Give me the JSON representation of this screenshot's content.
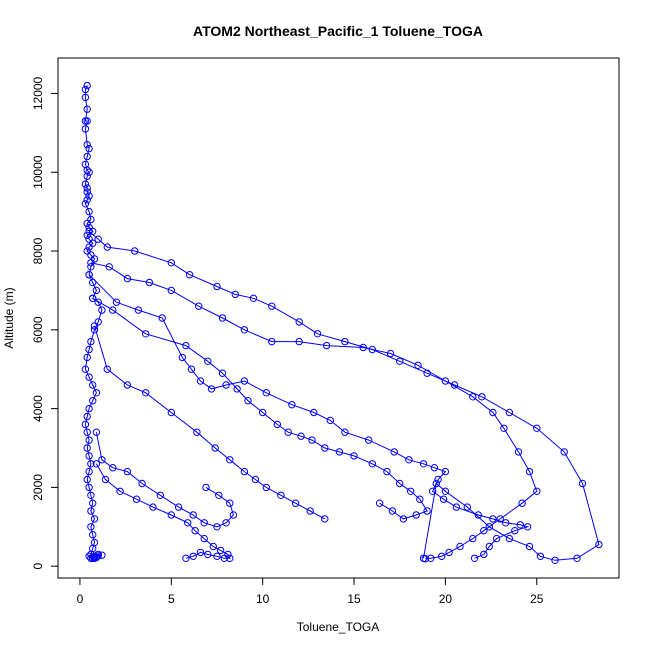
{
  "chart_data": {
    "type": "line",
    "title": "ATOM2 Northeast_Pacific_1 Toluene_TOGA",
    "xlabel": "Toluene_TOGA",
    "ylabel": "Altitude (m)",
    "xlim": [
      -1.2,
      29.5
    ],
    "ylim": [
      -300,
      12900
    ],
    "xticks": [
      0,
      5,
      10,
      15,
      20,
      25
    ],
    "yticks": [
      0,
      2000,
      4000,
      6000,
      8000,
      10000,
      12000
    ],
    "series_color": "#0000ff",
    "marker": "open-circle",
    "series": [
      {
        "x": [
          0.4,
          0.3,
          0.3,
          0.4,
          0.3,
          0.4,
          0.3,
          0.4,
          0.5,
          0.4,
          0.3,
          0.4,
          0.5,
          0.4,
          0.3,
          0.4,
          0.4,
          0.5,
          0.4,
          0.3,
          0.5,
          0.6,
          0.4,
          0.5,
          0.7,
          0.4,
          0.5,
          0.7,
          0.5,
          0.4,
          0.6,
          0.8,
          0.6,
          0.5,
          0.7,
          0.9,
          0.7,
          1.0,
          1.2,
          1.0,
          0.8,
          0.6,
          0.5,
          0.4,
          0.3,
          0.5,
          0.7,
          0.9,
          0.7,
          0.5,
          0.4,
          0.3,
          0.4,
          0.5,
          0.4,
          0.5,
          0.6,
          0.5,
          0.4,
          0.5,
          0.6,
          0.7,
          0.6,
          0.8,
          0.6,
          0.7,
          0.8,
          0.7,
          0.6,
          0.5,
          0.7,
          0.8,
          0.7,
          0.9,
          0.8,
          1.0,
          1.2,
          1.0,
          0.8,
          0.7,
          0.6
        ],
        "y": [
          12200,
          12100,
          11900,
          11600,
          11300,
          11300,
          11100,
          10700,
          10600,
          10400,
          10200,
          10050,
          10000,
          9900,
          9700,
          9600,
          9500,
          9400,
          9300,
          9200,
          9000,
          8800,
          8700,
          8600,
          8500,
          8400,
          8300,
          8200,
          8100,
          8000,
          7900,
          7800,
          7600,
          7400,
          7200,
          7000,
          6800,
          6700,
          6500,
          6200,
          6000,
          5700,
          5500,
          5300,
          5000,
          4800,
          4600,
          4400,
          4200,
          4000,
          3800,
          3600,
          3400,
          3200,
          3000,
          2800,
          2600,
          2400,
          2200,
          2000,
          1800,
          1600,
          1400,
          1200,
          1000,
          800,
          600,
          450,
          300,
          250,
          200,
          200,
          200,
          220,
          250,
          260,
          280,
          300,
          220,
          200,
          200
        ]
      },
      {
        "x": [
          0.5,
          1.0,
          1.5,
          3.0,
          5.0,
          6.0,
          7.5,
          8.5,
          9.5,
          10.5,
          12.0,
          13.0,
          14.5,
          16.0,
          17.5,
          19.0,
          20.5,
          22.0,
          23.5,
          25.0,
          26.5,
          27.5,
          28.4,
          27.2,
          26.0,
          25.2,
          24.6,
          23.5,
          22.4,
          21.2,
          20.0,
          19.5,
          18.8
        ],
        "y": [
          8500,
          8300,
          8100,
          8000,
          7700,
          7400,
          7100,
          6900,
          6800,
          6600,
          6200,
          5900,
          5700,
          5500,
          5200,
          4900,
          4600,
          4300,
          3900,
          3500,
          2900,
          2100,
          550,
          200,
          150,
          250,
          500,
          700,
          1000,
          1500,
          1900,
          2100,
          200
        ]
      },
      {
        "x": [
          0.6,
          1.6,
          2.6,
          3.8,
          5.0,
          6.5,
          7.8,
          9.0,
          10.5,
          12.0,
          13.5,
          15.5,
          17.0,
          18.5,
          20.0,
          21.5,
          22.6,
          23.2,
          24.0,
          24.6,
          25.0,
          24.2,
          23.0,
          22.1,
          21.5,
          20.8,
          20.2,
          19.8,
          19.2,
          18.9
        ],
        "y": [
          7700,
          7600,
          7300,
          7200,
          7000,
          6600,
          6300,
          6000,
          5700,
          5700,
          5600,
          5550,
          5400,
          5100,
          4700,
          4300,
          3900,
          3500,
          2900,
          2400,
          1900,
          1600,
          1200,
          900,
          700,
          500,
          350,
          250,
          200,
          190
        ]
      },
      {
        "x": [
          0.5,
          2.0,
          3.2,
          4.5,
          5.6,
          6.1,
          6.6,
          7.2,
          8.0,
          9.0,
          10.2,
          11.6,
          12.8,
          13.7,
          14.5,
          15.8,
          17.2,
          18.0,
          18.8,
          19.4,
          20.0,
          19.6,
          19.3,
          19.9,
          20.6,
          21.8,
          22.6,
          23.3,
          24.1,
          24.5,
          23.8,
          22.8,
          22.4,
          22.1,
          21.6
        ],
        "y": [
          7400,
          6700,
          6500,
          6300,
          5300,
          5000,
          4700,
          4500,
          4600,
          4700,
          4400,
          4100,
          3900,
          3700,
          3400,
          3200,
          2900,
          2700,
          2600,
          2500,
          2400,
          2200,
          1900,
          1700,
          1500,
          1300,
          1200,
          1100,
          1050,
          1000,
          900,
          700,
          500,
          300,
          200
        ]
      },
      {
        "x": [
          0.7,
          1.8,
          3.6,
          5.8,
          7.0,
          7.8,
          8.6,
          9.2,
          10.0,
          10.8,
          11.4,
          12.1,
          12.7,
          13.4,
          14.2,
          15.0,
          16.0,
          16.8,
          17.5,
          18.1,
          18.6,
          19.0,
          18.4,
          17.7,
          17.1,
          16.4
        ],
        "y": [
          6800,
          6500,
          5900,
          5600,
          5200,
          4900,
          4500,
          4200,
          3900,
          3600,
          3400,
          3300,
          3200,
          3000,
          2900,
          2800,
          2600,
          2400,
          2100,
          1900,
          1700,
          1400,
          1300,
          1200,
          1400,
          1600
        ]
      },
      {
        "x": [
          0.8,
          1.5,
          2.6,
          3.6,
          5.0,
          6.4,
          7.4,
          8.2,
          9.0,
          9.6,
          10.2,
          11.0,
          11.8,
          12.6,
          13.4
        ],
        "y": [
          6100,
          5000,
          4600,
          4400,
          3900,
          3400,
          3000,
          2700,
          2400,
          2200,
          2000,
          1800,
          1600,
          1400,
          1200
        ]
      },
      {
        "x": [
          0.9,
          1.2,
          1.8,
          2.6,
          3.4,
          4.4,
          5.4,
          6.2,
          6.8,
          7.5,
          8.0,
          8.4,
          8.2,
          7.6,
          6.9
        ],
        "y": [
          3400,
          2700,
          2500,
          2400,
          2100,
          1800,
          1500,
          1300,
          1100,
          1000,
          1100,
          1300,
          1600,
          1800,
          2000
        ]
      },
      {
        "x": [
          0.9,
          1.4,
          2.2,
          3.1,
          4.0,
          5.0,
          5.9,
          6.3,
          6.8,
          7.3,
          7.7,
          8.1,
          8.2,
          7.9,
          7.5,
          7.0,
          6.6,
          6.2,
          5.8
        ],
        "y": [
          2600,
          2200,
          1900,
          1700,
          1500,
          1300,
          1100,
          900,
          700,
          500,
          400,
          300,
          200,
          200,
          250,
          300,
          350,
          250,
          200
        ]
      }
    ]
  }
}
